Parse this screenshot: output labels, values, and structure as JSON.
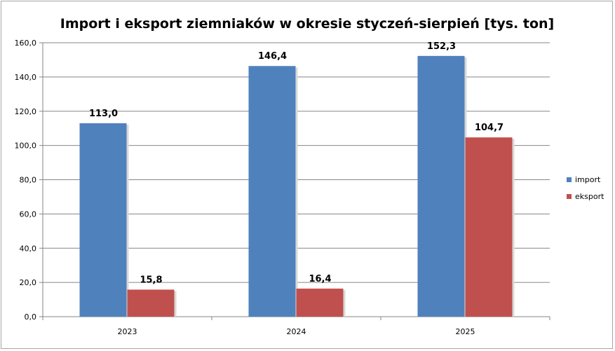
{
  "chart_data": {
    "type": "bar",
    "title": "Import i eksport ziemniaków w okresie styczeń-sierpień [tys. ton]",
    "categories": [
      "2023",
      "2024",
      "2025"
    ],
    "series": [
      {
        "name": "import",
        "color": "#4f81bd",
        "values": [
          113.0,
          146.4,
          152.3
        ],
        "labels": [
          "113,0",
          "146,4",
          "152,3"
        ]
      },
      {
        "name": "eksport",
        "color": "#c0504d",
        "values": [
          15.8,
          16.4,
          104.7
        ],
        "labels": [
          "15,8",
          "16,4",
          "104,7"
        ]
      }
    ],
    "ylim": [
      0,
      160
    ],
    "yticks": [
      0,
      20,
      40,
      60,
      80,
      100,
      120,
      140,
      160
    ],
    "ytick_labels": [
      "0,0",
      "20,0",
      "40,0",
      "60,0",
      "80,0",
      "100,0",
      "120,0",
      "140,0",
      "160,0"
    ],
    "xlabel": "",
    "ylabel": "",
    "grid": true,
    "legend": "right"
  }
}
